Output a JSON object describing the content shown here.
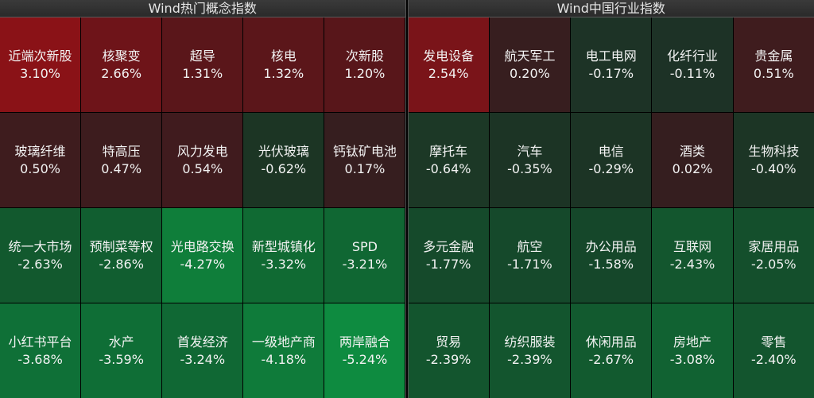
{
  "left": {
    "title": "Wind热门概念指数",
    "cells": [
      {
        "name": "近端次新股",
        "pct": "3.10%",
        "color": "#8a1217"
      },
      {
        "name": "核聚变",
        "pct": "2.66%",
        "color": "#6e1419"
      },
      {
        "name": "超导",
        "pct": "1.31%",
        "color": "#5a161a"
      },
      {
        "name": "核电",
        "pct": "1.32%",
        "color": "#5b161a"
      },
      {
        "name": "次新股",
        "pct": "1.20%",
        "color": "#58161a"
      },
      {
        "name": "玻璃纤维",
        "pct": "0.50%",
        "color": "#3e1c1e"
      },
      {
        "name": "特高压",
        "pct": "0.47%",
        "color": "#3d1c1e"
      },
      {
        "name": "风力发电",
        "pct": "0.54%",
        "color": "#401b1e"
      },
      {
        "name": "光伏玻璃",
        "pct": "-0.62%",
        "color": "#1c3524"
      },
      {
        "name": "钙钛矿电池",
        "pct": "0.17%",
        "color": "#361e1f"
      },
      {
        "name": "统一大市场",
        "pct": "-2.63%",
        "color": "#12592e"
      },
      {
        "name": "预制菜等权",
        "pct": "-2.86%",
        "color": "#115e30"
      },
      {
        "name": "光电路交换",
        "pct": "-4.27%",
        "color": "#0f7e3a"
      },
      {
        "name": "新型城镇化",
        "pct": "-3.32%",
        "color": "#106a33"
      },
      {
        "name": "SPD",
        "pct": "-3.21%",
        "color": "#106733"
      },
      {
        "name": "小红书平台",
        "pct": "-3.68%",
        "color": "#0f7037"
      },
      {
        "name": "水产",
        "pct": "-3.59%",
        "color": "#0f6e36"
      },
      {
        "name": "首发经济",
        "pct": "-3.24%",
        "color": "#106834"
      },
      {
        "name": "一级地产商",
        "pct": "-4.18%",
        "color": "#0f7b3a"
      },
      {
        "name": "两岸融合",
        "pct": "-5.24%",
        "color": "#0e8b40"
      }
    ]
  },
  "right": {
    "title": "Wind中国行业指数",
    "cells": [
      {
        "name": "发电设备",
        "pct": "2.54%",
        "color": "#7a1419"
      },
      {
        "name": "航天军工",
        "pct": "0.20%",
        "color": "#371e1f"
      },
      {
        "name": "电工电网",
        "pct": "-0.17%",
        "color": "#1d3326"
      },
      {
        "name": "化纤行业",
        "pct": "-0.11%",
        "color": "#1d3226"
      },
      {
        "name": "贵金属",
        "pct": "0.51%",
        "color": "#3f1c1e"
      },
      {
        "name": "摩托车",
        "pct": "-0.64%",
        "color": "#1c3826"
      },
      {
        "name": "汽车",
        "pct": "-0.35%",
        "color": "#1c3425"
      },
      {
        "name": "电信",
        "pct": "-0.29%",
        "color": "#1c3425"
      },
      {
        "name": "酒类",
        "pct": "0.02%",
        "color": "#351e1f"
      },
      {
        "name": "生物科技",
        "pct": "-0.40%",
        "color": "#1c3525"
      },
      {
        "name": "多元金融",
        "pct": "-1.77%",
        "color": "#154a2b"
      },
      {
        "name": "航空",
        "pct": "-1.71%",
        "color": "#15492b"
      },
      {
        "name": "办公用品",
        "pct": "-1.58%",
        "color": "#15472a"
      },
      {
        "name": "互联网",
        "pct": "-2.43%",
        "color": "#13562e"
      },
      {
        "name": "家居用品",
        "pct": "-2.05%",
        "color": "#144f2c"
      },
      {
        "name": "贸易",
        "pct": "-2.39%",
        "color": "#13552e"
      },
      {
        "name": "纺织服装",
        "pct": "-2.39%",
        "color": "#13552e"
      },
      {
        "name": "休闲用品",
        "pct": "-2.67%",
        "color": "#125a2f"
      },
      {
        "name": "房地产",
        "pct": "-3.08%",
        "color": "#116232"
      },
      {
        "name": "零售",
        "pct": "-2.40%",
        "color": "#13552e"
      }
    ]
  }
}
